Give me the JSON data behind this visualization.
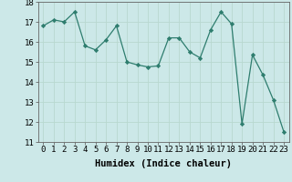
{
  "x": [
    0,
    1,
    2,
    3,
    4,
    5,
    6,
    7,
    8,
    9,
    10,
    11,
    12,
    13,
    14,
    15,
    16,
    17,
    18,
    19,
    20,
    21,
    22,
    23
  ],
  "y": [
    16.8,
    17.1,
    17.0,
    17.5,
    15.8,
    15.6,
    16.1,
    16.8,
    15.0,
    14.85,
    14.75,
    14.8,
    16.2,
    16.2,
    15.5,
    15.2,
    16.6,
    17.5,
    16.9,
    11.9,
    15.35,
    14.35,
    13.1,
    11.5
  ],
  "line_color": "#2e7d6e",
  "marker": "D",
  "marker_size": 2.2,
  "bg_color": "#cce8e8",
  "grid_color": "#b8d8d0",
  "xlabel": "Humidex (Indice chaleur)",
  "xlim": [
    -0.5,
    23.5
  ],
  "ylim": [
    11,
    18
  ],
  "yticks": [
    11,
    12,
    13,
    14,
    15,
    16,
    17,
    18
  ],
  "xticks": [
    0,
    1,
    2,
    3,
    4,
    5,
    6,
    7,
    8,
    9,
    10,
    11,
    12,
    13,
    14,
    15,
    16,
    17,
    18,
    19,
    20,
    21,
    22,
    23
  ],
  "xtick_labels": [
    "0",
    "1",
    "2",
    "3",
    "4",
    "5",
    "6",
    "7",
    "8",
    "9",
    "10",
    "11",
    "12",
    "13",
    "14",
    "15",
    "16",
    "17",
    "18",
    "19",
    "20",
    "21",
    "22",
    "23"
  ],
  "tick_fontsize": 6.5,
  "xlabel_fontsize": 7.5,
  "line_width": 0.9
}
